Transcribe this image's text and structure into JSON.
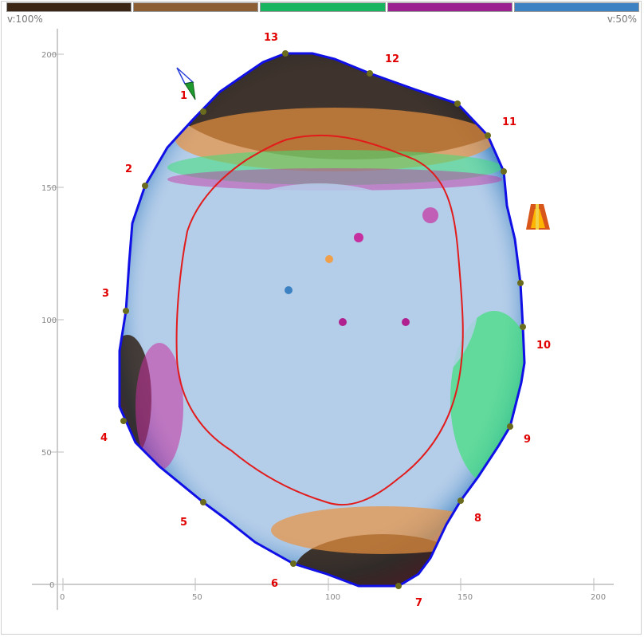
{
  "colorbar": {
    "colors": [
      "#3b2616",
      "#8b5e34",
      "#18b45f",
      "#9b2190",
      "#3c82c2"
    ],
    "left_label": "v:100%",
    "right_label": "v:50%"
  },
  "axes": {
    "x_ticks": [
      "0",
      "50",
      "100",
      "150",
      "200"
    ],
    "y_ticks": [
      "0",
      "50",
      "100",
      "150",
      "200"
    ]
  },
  "colors": {
    "outline": "#1010e6",
    "contour": "#e21b1b",
    "label": "#e00000",
    "interior": "#b4cde9"
  },
  "segment_labels": [
    "1",
    "2",
    "3",
    "4",
    "5",
    "6",
    "7",
    "8",
    "9",
    "10",
    "11",
    "12",
    "13"
  ],
  "icons": {
    "compass": "compass-arrow-icon",
    "tower": "orange-tower-icon"
  }
}
